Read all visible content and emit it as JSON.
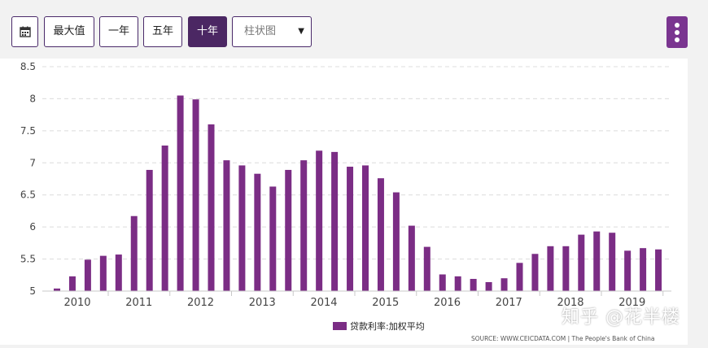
{
  "toolbar": {
    "calendar_icon": "calendar-icon",
    "buttons": [
      {
        "label": "最大值",
        "active": false
      },
      {
        "label": "一年",
        "active": false
      },
      {
        "label": "五年",
        "active": false
      },
      {
        "label": "十年",
        "active": true
      }
    ],
    "chart_type_select": "柱状图",
    "more_icon": "vertical-ellipsis-icon"
  },
  "colors": {
    "bar": "#7b2d85",
    "accent": "#4b2763"
  },
  "chart_data": {
    "type": "bar",
    "ylim": [
      5,
      8.5
    ],
    "yticks": [
      "5",
      "5.5",
      "6",
      "6.5",
      "7",
      "7.5",
      "8",
      "8.5"
    ],
    "year_labels": [
      "2010",
      "2011",
      "2012",
      "2013",
      "2014",
      "2015",
      "2016",
      "2017",
      "2018",
      "2019"
    ],
    "series": [
      {
        "name": "贷款利率:加权平均",
        "values": [
          5.04,
          5.23,
          5.49,
          5.55,
          5.57,
          6.17,
          6.89,
          7.27,
          8.05,
          7.99,
          7.6,
          7.04,
          6.96,
          6.83,
          6.63,
          6.89,
          7.04,
          7.19,
          7.17,
          6.94,
          6.96,
          6.76,
          6.54,
          6.02,
          5.69,
          5.26,
          5.23,
          5.19,
          5.14,
          5.2,
          5.44,
          5.58,
          5.7,
          5.7,
          5.88,
          5.93,
          5.91,
          5.63,
          5.67,
          5.65
        ]
      }
    ],
    "legend": "bottom-center",
    "grid": true
  },
  "source": "SOURCE: WWW.CEICDATA.COM | The People's Bank of China",
  "watermark": "知乎 @花半楼"
}
